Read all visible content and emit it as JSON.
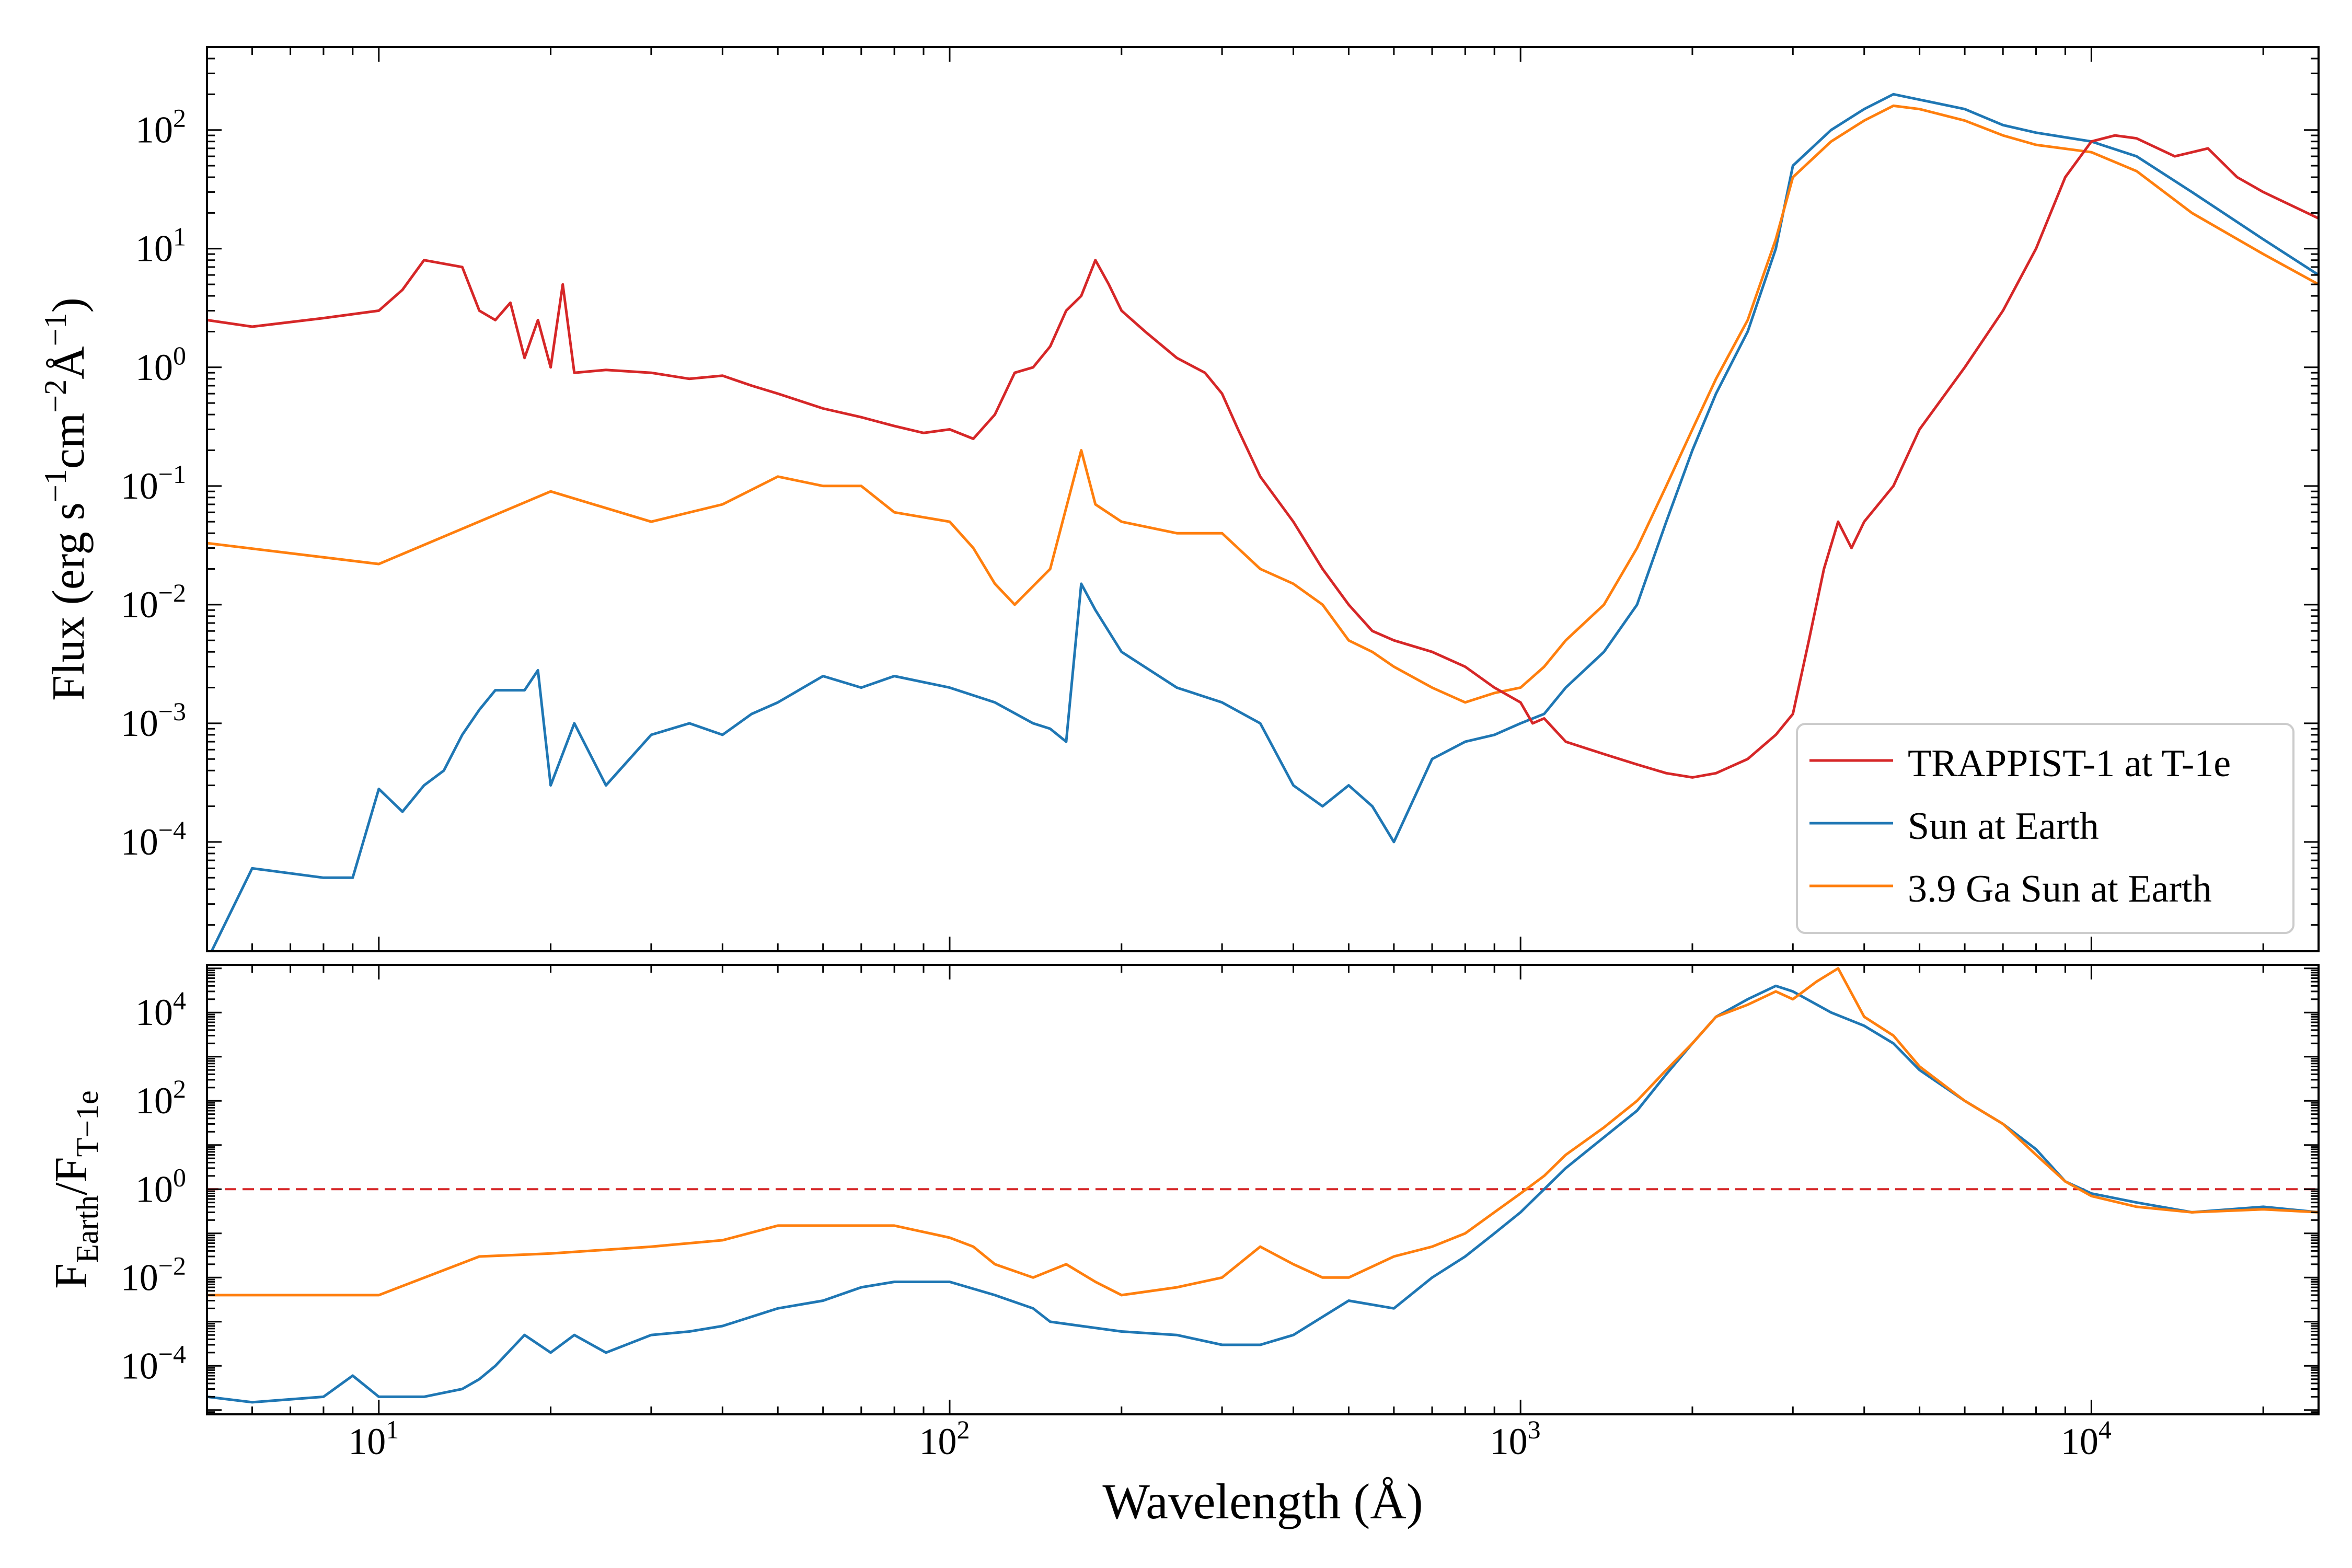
{
  "figure": {
    "xlabel": "Wavelength (Å)",
    "x_ticks": [
      {
        "base": "10",
        "exp": "1",
        "value": 10
      },
      {
        "base": "10",
        "exp": "2",
        "value": 100
      },
      {
        "base": "10",
        "exp": "3",
        "value": 1000
      },
      {
        "base": "10",
        "exp": "4",
        "value": 10000
      }
    ],
    "xlim": [
      5,
      25000
    ],
    "x_scale": "log"
  },
  "colors": {
    "trappist": "#d62728",
    "sun": "#1f77b4",
    "young_sun": "#ff7f0e",
    "unity_line": "#d62728"
  },
  "chart_data": [
    {
      "type": "line",
      "panel": "top",
      "ylabel": {
        "t1": "Flux (erg s",
        "s1": "−1",
        "t2": "cm",
        "s2": "−2",
        "t3": "Å",
        "s3": "−1",
        "t4": ")"
      },
      "y_scale": "log",
      "ylim": [
        1.2e-05,
        500
      ],
      "y_ticks": [
        {
          "base": "10",
          "exp": "−4",
          "value": 0.0001
        },
        {
          "base": "10",
          "exp": "−3",
          "value": 0.001
        },
        {
          "base": "10",
          "exp": "−2",
          "value": 0.01
        },
        {
          "base": "10",
          "exp": "−1",
          "value": 0.1
        },
        {
          "base": "10",
          "exp": "0",
          "value": 1
        },
        {
          "base": "10",
          "exp": "1",
          "value": 10
        },
        {
          "base": "10",
          "exp": "2",
          "value": 100
        }
      ],
      "legend": {
        "position": "lower right",
        "entries": [
          "TRAPPIST-1 at T-1e",
          "Sun at Earth",
          "3.9 Ga Sun at Earth"
        ]
      },
      "series": [
        {
          "name": "TRAPPIST-1 at T-1e",
          "color": "#d62728",
          "x": [
            5,
            6,
            8,
            10,
            11,
            12,
            14,
            15,
            16,
            17,
            18,
            19,
            20,
            21,
            22,
            25,
            30,
            35,
            40,
            45,
            50,
            60,
            70,
            80,
            90,
            100,
            110,
            120,
            130,
            140,
            150,
            160,
            170,
            180,
            190,
            200,
            220,
            250,
            280,
            300,
            320,
            350,
            400,
            450,
            500,
            550,
            600,
            700,
            800,
            900,
            1000,
            1050,
            1100,
            1200,
            1400,
            1600,
            1800,
            2000,
            2200,
            2500,
            2800,
            3000,
            3200,
            3400,
            3600,
            3800,
            4000,
            4500,
            5000,
            6000,
            7000,
            8000,
            9000,
            10000,
            11000,
            12000,
            14000,
            16000,
            18000,
            20000,
            25000
          ],
          "y": [
            2.5,
            2.2,
            2.6,
            3.0,
            4.5,
            8.0,
            7.0,
            3.0,
            2.5,
            3.5,
            1.2,
            2.5,
            1.0,
            5.0,
            0.9,
            0.95,
            0.9,
            0.8,
            0.85,
            0.7,
            0.6,
            0.45,
            0.38,
            0.32,
            0.28,
            0.3,
            0.25,
            0.4,
            0.9,
            1.0,
            1.5,
            3.0,
            4.0,
            8.0,
            5.0,
            3.0,
            2.0,
            1.2,
            0.9,
            0.6,
            0.3,
            0.12,
            0.05,
            0.02,
            0.01,
            0.006,
            0.005,
            0.004,
            0.003,
            0.002,
            0.0015,
            0.001,
            0.0011,
            0.0007,
            0.00055,
            0.00045,
            0.00038,
            0.00035,
            0.00038,
            0.0005,
            0.0008,
            0.0012,
            0.005,
            0.02,
            0.05,
            0.03,
            0.05,
            0.1,
            0.3,
            1.0,
            3.0,
            10,
            40,
            80,
            90,
            85,
            60,
            70,
            40,
            30,
            18
          ]
        },
        {
          "name": "Sun at Earth",
          "color": "#1f77b4",
          "x": [
            5,
            6,
            8,
            9,
            10,
            11,
            12,
            13,
            14,
            15,
            16,
            18,
            19,
            20,
            22,
            25,
            30,
            35,
            40,
            45,
            50,
            60,
            70,
            80,
            100,
            120,
            140,
            150,
            160,
            170,
            180,
            200,
            250,
            300,
            350,
            400,
            450,
            500,
            550,
            600,
            700,
            800,
            900,
            1000,
            1100,
            1200,
            1400,
            1600,
            1800,
            2000,
            2200,
            2500,
            2800,
            3000,
            3500,
            4000,
            4500,
            5000,
            6000,
            7000,
            8000,
            10000,
            12000,
            15000,
            20000,
            25000
          ],
          "y": [
            1e-05,
            6e-05,
            5e-05,
            5e-05,
            0.00028,
            0.00018,
            0.0003,
            0.0004,
            0.0008,
            0.0013,
            0.0019,
            0.0019,
            0.0028,
            0.0003,
            0.001,
            0.0003,
            0.0008,
            0.001,
            0.0008,
            0.0012,
            0.0015,
            0.0025,
            0.002,
            0.0025,
            0.002,
            0.0015,
            0.001,
            0.0009,
            0.0007,
            0.015,
            0.009,
            0.004,
            0.002,
            0.0015,
            0.001,
            0.0003,
            0.0002,
            0.0003,
            0.0002,
            0.0001,
            0.0005,
            0.0007,
            0.0008,
            0.001,
            0.0012,
            0.002,
            0.004,
            0.01,
            0.05,
            0.2,
            0.6,
            2.0,
            10,
            50,
            100,
            150,
            200,
            180,
            150,
            110,
            95,
            80,
            60,
            30,
            12,
            6
          ]
        },
        {
          "name": "3.9 Ga Sun at Earth",
          "color": "#ff7f0e",
          "x": [
            5,
            10,
            20,
            30,
            40,
            50,
            60,
            70,
            80,
            100,
            110,
            120,
            130,
            150,
            170,
            180,
            200,
            250,
            300,
            350,
            400,
            450,
            500,
            550,
            600,
            700,
            800,
            900,
            1000,
            1100,
            1200,
            1400,
            1600,
            1800,
            2000,
            2200,
            2500,
            2800,
            3000,
            3500,
            4000,
            4500,
            5000,
            6000,
            7000,
            8000,
            10000,
            12000,
            15000,
            20000,
            25000
          ],
          "y": [
            0.033,
            0.022,
            0.09,
            0.05,
            0.07,
            0.12,
            0.1,
            0.1,
            0.06,
            0.05,
            0.03,
            0.015,
            0.01,
            0.02,
            0.2,
            0.07,
            0.05,
            0.04,
            0.04,
            0.02,
            0.015,
            0.01,
            0.005,
            0.004,
            0.003,
            0.002,
            0.0015,
            0.0018,
            0.002,
            0.003,
            0.005,
            0.01,
            0.03,
            0.1,
            0.3,
            0.8,
            2.5,
            12,
            40,
            80,
            120,
            160,
            150,
            120,
            90,
            75,
            65,
            45,
            20,
            9,
            5
          ]
        }
      ]
    },
    {
      "type": "line",
      "panel": "bottom",
      "ylabel": {
        "t1": "F",
        "s1": "Earth",
        "t2": "/F",
        "s2": "T−1e"
      },
      "y_scale": "log",
      "ylim": [
        8e-06,
        120000
      ],
      "y_ticks": [
        {
          "base": "10",
          "exp": "−4",
          "value": 0.0001
        },
        {
          "base": "10",
          "exp": "−2",
          "value": 0.01
        },
        {
          "base": "10",
          "exp": "0",
          "value": 1
        },
        {
          "base": "10",
          "exp": "2",
          "value": 100
        },
        {
          "base": "10",
          "exp": "4",
          "value": 10000
        }
      ],
      "reference_line": {
        "y": 1,
        "style": "dashed",
        "color": "#d62728"
      },
      "series": [
        {
          "name": "Sun at Earth",
          "color": "#1f77b4",
          "x": [
            5,
            6,
            8,
            9,
            10,
            12,
            14,
            15,
            16,
            18,
            20,
            22,
            25,
            30,
            35,
            40,
            50,
            60,
            70,
            80,
            100,
            120,
            140,
            150,
            170,
            200,
            250,
            300,
            350,
            400,
            500,
            600,
            700,
            800,
            900,
            1000,
            1100,
            1200,
            1400,
            1600,
            1800,
            2000,
            2200,
            2500,
            2800,
            3000,
            3500,
            4000,
            4500,
            5000,
            6000,
            7000,
            8000,
            9000,
            10000,
            12000,
            15000,
            20000,
            25000
          ],
          "y": [
            2e-05,
            1.5e-05,
            2e-05,
            6e-05,
            2e-05,
            2e-05,
            3e-05,
            5e-05,
            0.0001,
            0.0005,
            0.0002,
            0.0005,
            0.0002,
            0.0005,
            0.0006,
            0.0008,
            0.002,
            0.003,
            0.006,
            0.008,
            0.008,
            0.004,
            0.002,
            0.001,
            0.0008,
            0.0006,
            0.0005,
            0.0003,
            0.0003,
            0.0005,
            0.003,
            0.002,
            0.01,
            0.03,
            0.1,
            0.3,
            1.0,
            3.0,
            15,
            60,
            400,
            2000,
            8000,
            20000,
            40000,
            30000,
            10000,
            5000,
            2000,
            500,
            100,
            30,
            8,
            1.5,
            0.8,
            0.5,
            0.3,
            0.4,
            0.3
          ]
        },
        {
          "name": "3.9 Ga Sun at Earth",
          "color": "#ff7f0e",
          "x": [
            5,
            10,
            15,
            20,
            30,
            40,
            50,
            60,
            80,
            100,
            110,
            120,
            140,
            160,
            180,
            200,
            250,
            300,
            350,
            400,
            450,
            500,
            600,
            700,
            800,
            900,
            1000,
            1100,
            1200,
            1400,
            1600,
            1800,
            2000,
            2200,
            2500,
            2800,
            3000,
            3300,
            3600,
            4000,
            4500,
            5000,
            6000,
            7000,
            8000,
            9000,
            10000,
            12000,
            15000,
            20000,
            25000
          ],
          "y": [
            0.004,
            0.004,
            0.03,
            0.035,
            0.05,
            0.07,
            0.15,
            0.15,
            0.15,
            0.08,
            0.05,
            0.02,
            0.01,
            0.02,
            0.008,
            0.004,
            0.006,
            0.01,
            0.05,
            0.02,
            0.01,
            0.01,
            0.03,
            0.05,
            0.1,
            0.3,
            0.8,
            2.0,
            6.0,
            25,
            100,
            500,
            2000,
            8000,
            15000,
            30000,
            20000,
            50000,
            100000,
            8000,
            3000,
            600,
            100,
            30,
            6,
            1.5,
            0.7,
            0.4,
            0.3,
            0.35,
            0.3
          ]
        }
      ]
    }
  ]
}
